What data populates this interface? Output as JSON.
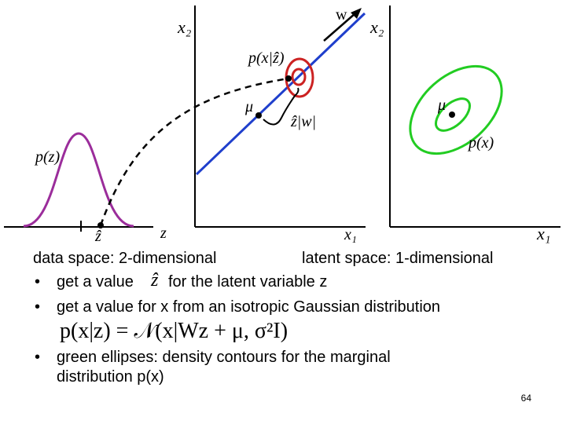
{
  "figure": {
    "left_plot": {
      "axis_label_x2_left": "x₂",
      "axis_label_z": "z",
      "pz_label": "p(z)",
      "zhat_label": "ẑ"
    },
    "middle_plot": {
      "axis_label_x2": "x₂",
      "axis_label_x1": "x₁",
      "w_label": "w",
      "px_given_zhat_label": "p(x|ẑ)",
      "mu_label": "μ",
      "zhat_w_label": "ẑ|w|"
    },
    "right_plot": {
      "mu_label": "μ",
      "px_label": "p(x)",
      "axis_label_x1": "x₁"
    },
    "colors": {
      "gaussian_curve": "#9b2d9b",
      "data_line": "#1f3fcc",
      "red_contours": "#cc2222",
      "green_ellipses": "#22cc22"
    }
  },
  "text": {
    "line1_left": "data space: 2-dimensional",
    "line1_right": "latent space: 1-dimensional",
    "bullet1_a": "get a value",
    "bullet1_symbol": "ẑ",
    "bullet1_b": "for the latent variable z",
    "bullet2": "get a value for x from an isotropic Gaussian distribution",
    "formula": "p(x|z) = 𝒩(x|Wz + μ, σ²I)",
    "bullet3_line1": "green ellipses: density contours for the marginal",
    "bullet3_line2": "distribution p(x)",
    "bullet_char": "•",
    "page_number": "64"
  }
}
